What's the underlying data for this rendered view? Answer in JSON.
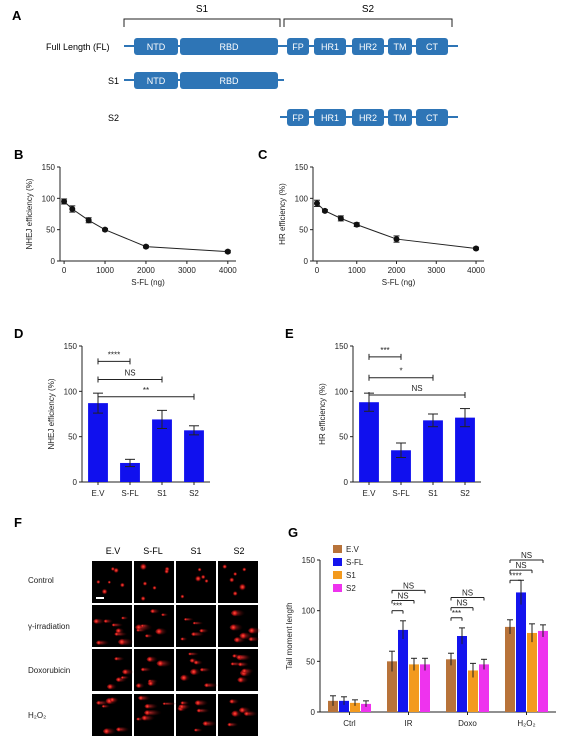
{
  "panel_letters": [
    "A",
    "B",
    "C",
    "D",
    "E",
    "F",
    "G"
  ],
  "panel_a": {
    "brace_labels": [
      "S1",
      "S2"
    ],
    "rows": [
      {
        "label": "Full Length (FL)",
        "domains": [
          "NTD",
          "RBD",
          "FP",
          "HR1",
          "HR2",
          "TM",
          "CT"
        ]
      },
      {
        "label": "S1",
        "domains": [
          "NTD",
          "RBD"
        ]
      },
      {
        "label": "S2",
        "domains": [
          "FP",
          "HR1",
          "HR2",
          "TM",
          "CT"
        ]
      }
    ],
    "domain_color": "#2e75b6"
  },
  "chart_data": [
    {
      "panel": "B",
      "type": "line",
      "xlabel": "S-FL (ng)",
      "ylabel": "NHEJ efficiency (%)",
      "x": [
        0,
        200,
        600,
        1000,
        2000,
        4000
      ],
      "y": [
        95,
        83,
        65,
        50,
        23,
        15
      ],
      "err": [
        4,
        5,
        4,
        2,
        2,
        2
      ],
      "xticks": [
        0,
        1000,
        2000,
        3000,
        4000
      ],
      "yticks": [
        0,
        50,
        100,
        150
      ],
      "xlim": [
        -100,
        4200
      ],
      "ylim": [
        0,
        150
      ]
    },
    {
      "panel": "C",
      "type": "line",
      "xlabel": "S-FL (ng)",
      "ylabel": "HR efficiency (%)",
      "x": [
        0,
        200,
        600,
        1000,
        2000,
        4000
      ],
      "y": [
        92,
        80,
        68,
        58,
        35,
        20
      ],
      "err": [
        5,
        2,
        4,
        3,
        5,
        2
      ],
      "xticks": [
        0,
        1000,
        2000,
        3000,
        4000
      ],
      "yticks": [
        0,
        50,
        100,
        150
      ],
      "xlim": [
        -100,
        4200
      ],
      "ylim": [
        0,
        150
      ]
    },
    {
      "panel": "D",
      "type": "bar",
      "ylabel": "NHEJ efficiency (%)",
      "categories": [
        "E.V",
        "S-FL",
        "S1",
        "S2"
      ],
      "values": [
        87,
        21,
        69,
        57
      ],
      "err": [
        11,
        4,
        10,
        5
      ],
      "yticks": [
        0,
        50,
        100,
        150
      ],
      "ylim": [
        0,
        150
      ],
      "color": "#1010ee",
      "sig": [
        {
          "from": 0,
          "to": 1,
          "label": "****",
          "y": 133
        },
        {
          "from": 0,
          "to": 2,
          "label": "NS",
          "y": 113
        },
        {
          "from": 0,
          "to": 3,
          "label": "**",
          "y": 94
        }
      ]
    },
    {
      "panel": "E",
      "type": "bar",
      "ylabel": "HR efficiency (%)",
      "categories": [
        "E.V",
        "S-FL",
        "S1",
        "S2"
      ],
      "values": [
        88,
        35,
        68,
        71
      ],
      "err": [
        10,
        8,
        7,
        10
      ],
      "yticks": [
        0,
        50,
        100,
        150
      ],
      "ylim": [
        0,
        150
      ],
      "color": "#1010ee",
      "sig": [
        {
          "from": 0,
          "to": 1,
          "label": "***",
          "y": 138
        },
        {
          "from": 0,
          "to": 2,
          "label": "*",
          "y": 115
        },
        {
          "from": 0,
          "to": 3,
          "label": "NS",
          "y": 96
        }
      ]
    },
    {
      "panel": "G",
      "type": "bar",
      "ylabel": "Tail moment length",
      "categories": [
        "Ctrl",
        "IR",
        "Doxo",
        "H₂O₂"
      ],
      "series": [
        {
          "name": "E.V",
          "color": "#b8733a",
          "values": [
            11,
            50,
            52,
            84
          ],
          "err": [
            5,
            10,
            6,
            7
          ]
        },
        {
          "name": "S-FL",
          "color": "#1414ee",
          "values": [
            11,
            81,
            75,
            118
          ],
          "err": [
            4,
            9,
            8,
            12
          ]
        },
        {
          "name": "S1",
          "color": "#f39a1e",
          "values": [
            9,
            47,
            41,
            78
          ],
          "err": [
            3,
            6,
            7,
            9
          ]
        },
        {
          "name": "S2",
          "color": "#ee33ee",
          "values": [
            8,
            47,
            47,
            80
          ],
          "err": [
            3,
            6,
            5,
            6
          ]
        }
      ],
      "yticks": [
        0,
        50,
        100,
        150
      ],
      "ylim": [
        0,
        150
      ],
      "sig": [
        {
          "group": 1,
          "to": 1,
          "label": "***",
          "y": 100
        },
        {
          "group": 1,
          "to": 2,
          "label": "NS",
          "y": 110
        },
        {
          "group": 1,
          "to": 3,
          "label": "NS",
          "y": 120
        },
        {
          "group": 2,
          "to": 1,
          "label": "***",
          "y": 93
        },
        {
          "group": 2,
          "to": 2,
          "label": "NS",
          "y": 103
        },
        {
          "group": 2,
          "to": 3,
          "label": "NS",
          "y": 113
        },
        {
          "group": 3,
          "to": 1,
          "label": "****",
          "y": 130
        },
        {
          "group": 3,
          "to": 2,
          "label": "NS",
          "y": 140
        },
        {
          "group": 3,
          "to": 3,
          "label": "NS",
          "y": 150
        }
      ]
    }
  ],
  "panel_f": {
    "columns": [
      "E.V",
      "S-FL",
      "S1",
      "S2"
    ],
    "rows": [
      "Control",
      "γ-irradiation",
      "Doxorubicin",
      "H₂O₂"
    ]
  }
}
